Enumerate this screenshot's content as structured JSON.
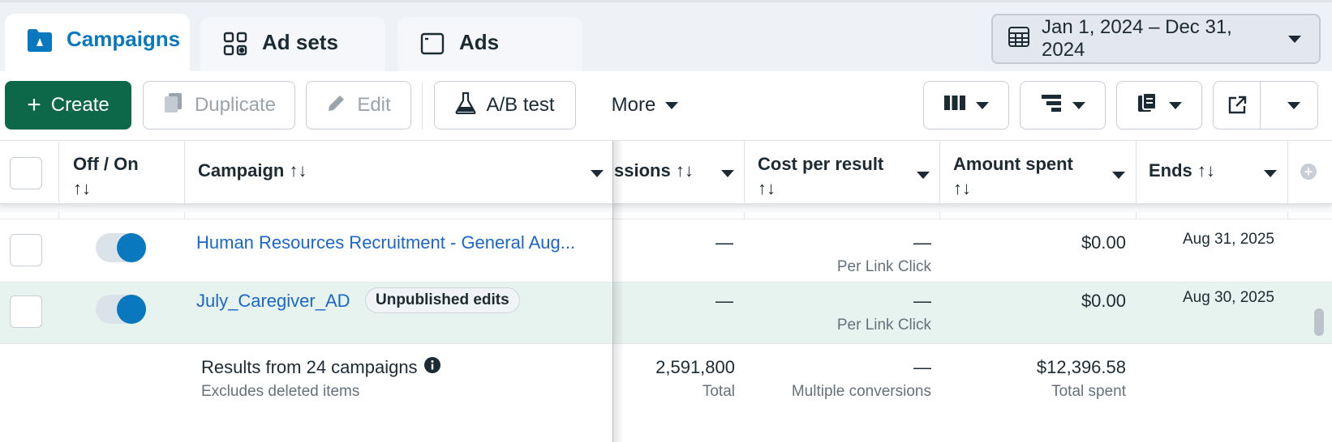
{
  "tabs": [
    {
      "label": "Campaigns",
      "icon": "folder-icon",
      "active": true
    },
    {
      "label": "Ad sets",
      "icon": "grid-icon",
      "active": false
    },
    {
      "label": "Ads",
      "icon": "ad-window-icon",
      "active": false
    }
  ],
  "date_range": "Jan 1, 2024 – Dec 31, 2024",
  "toolbar": {
    "create": "Create",
    "duplicate": "Duplicate",
    "edit": "Edit",
    "ab_test": "A/B test",
    "more": "More"
  },
  "columns": {
    "off_on": "Off / On",
    "campaign": "Campaign",
    "impressions": "ssions",
    "cost_per_result": "Cost per result",
    "amount_spent": "Amount spent",
    "ends": "Ends",
    "sort_glyph": "↑↓"
  },
  "partial_row": {
    "cost_sub": "Per Link Click"
  },
  "rows": [
    {
      "name": "Human Resources Recruitment - General Aug...",
      "impressions": "—",
      "cost": "—",
      "cost_sub": "Per Link Click",
      "amount": "$0.00",
      "ends": "Aug 31, 2025",
      "badge": ""
    },
    {
      "name": "July_Caregiver_AD",
      "impressions": "—",
      "cost": "—",
      "cost_sub": "Per Link Click",
      "amount": "$0.00",
      "ends": "Aug 30, 2025",
      "badge": "Unpublished edits"
    }
  ],
  "summary": {
    "title": "Results from 24 campaigns",
    "subtitle": "Excludes deleted items",
    "impressions": "2,591,800",
    "impressions_sub": "Total",
    "cost": "—",
    "cost_sub": "Multiple conversions",
    "amount": "$12,396.58",
    "amount_sub": "Total spent"
  },
  "colors": {
    "accent": "#0a78be",
    "create_button": "#0d6849",
    "selected_row": "#e6f3ef",
    "link": "#1a67c9"
  }
}
